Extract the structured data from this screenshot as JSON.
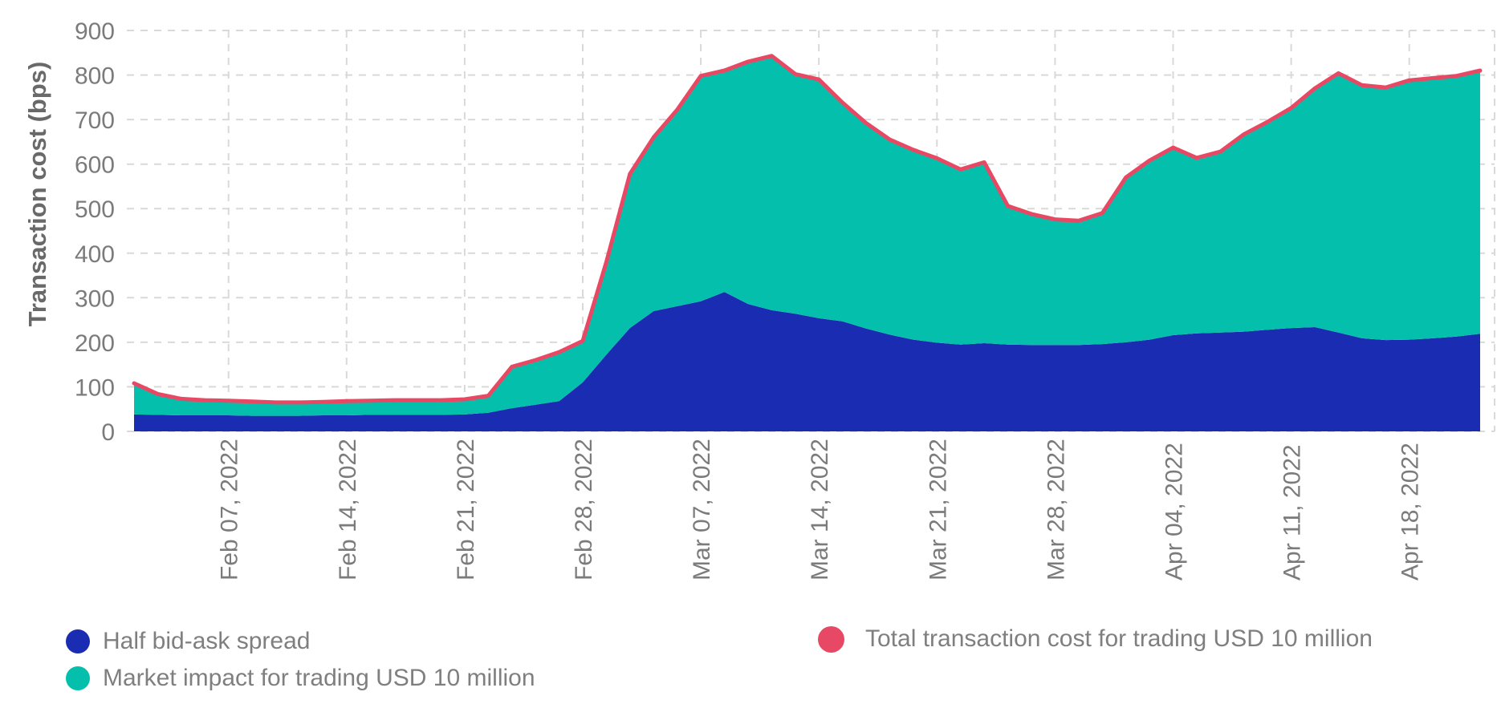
{
  "page": {
    "background_color": "#ffffff",
    "text_color": "#7b7b7b",
    "grid_color": "#d9d9d9"
  },
  "y_axis": {
    "title": "Transaction cost (bps)",
    "tick_labels": [
      "0",
      "100",
      "200",
      "300",
      "400",
      "500",
      "600",
      "700",
      "800",
      "900"
    ]
  },
  "legend": {
    "swatch_shape": "circle",
    "left_column": [
      "Half bid-ask spread",
      "Market impact for trading USD 10 million"
    ],
    "right_column": [
      "Total transaction cost for trading USD 10 million"
    ]
  },
  "chart_data": {
    "type": "area",
    "stacked": true,
    "title": "",
    "xlabel": "",
    "ylabel": "Transaction cost (bps)",
    "ylim": [
      0,
      900
    ],
    "y_ticks": [
      0,
      100,
      200,
      300,
      400,
      500,
      600,
      700,
      800,
      900
    ],
    "grid": "dashed",
    "grid_color": "#d9d9d9",
    "legend_position": "bottom",
    "x": [
      "Feb 01, 2022",
      "Feb 02, 2022",
      "Feb 03, 2022",
      "Feb 04, 2022",
      "Feb 07, 2022",
      "Feb 08, 2022",
      "Feb 09, 2022",
      "Feb 10, 2022",
      "Feb 11, 2022",
      "Feb 14, 2022",
      "Feb 15, 2022",
      "Feb 16, 2022",
      "Feb 17, 2022",
      "Feb 18, 2022",
      "Feb 21, 2022",
      "Feb 22, 2022",
      "Feb 23, 2022",
      "Feb 24, 2022",
      "Feb 25, 2022",
      "Feb 28, 2022",
      "Mar 01, 2022",
      "Mar 02, 2022",
      "Mar 03, 2022",
      "Mar 04, 2022",
      "Mar 07, 2022",
      "Mar 08, 2022",
      "Mar 09, 2022",
      "Mar 10, 2022",
      "Mar 11, 2022",
      "Mar 14, 2022",
      "Mar 15, 2022",
      "Mar 16, 2022",
      "Mar 17, 2022",
      "Mar 18, 2022",
      "Mar 21, 2022",
      "Mar 22, 2022",
      "Mar 23, 2022",
      "Mar 24, 2022",
      "Mar 25, 2022",
      "Mar 28, 2022",
      "Mar 29, 2022",
      "Mar 30, 2022",
      "Mar 31, 2022",
      "Apr 01, 2022",
      "Apr 04, 2022",
      "Apr 05, 2022",
      "Apr 06, 2022",
      "Apr 07, 2022",
      "Apr 08, 2022",
      "Apr 11, 2022",
      "Apr 12, 2022",
      "Apr 13, 2022",
      "Apr 14, 2022",
      "Apr 15, 2022",
      "Apr 18, 2022",
      "Apr 19, 2022",
      "Apr 20, 2022",
      "Apr 21, 2022"
    ],
    "x_tick_labels": [
      "Feb 07, 2022",
      "Feb 14, 2022",
      "Feb 21, 2022",
      "Feb 28, 2022",
      "Mar 07, 2022",
      "Mar 14, 2022",
      "Mar 21, 2022",
      "Mar 28, 2022",
      "Apr 04, 2022",
      "Apr 11, 2022",
      "Apr 18, 2022"
    ],
    "x_tick_indices": [
      4,
      9,
      14,
      19,
      24,
      29,
      34,
      39,
      44,
      49,
      54
    ],
    "series": [
      {
        "name": "Half bid-ask spread",
        "type": "area",
        "color": "#1a2db2",
        "values": [
          38,
          37,
          36,
          36,
          36,
          35,
          35,
          35,
          36,
          36,
          37,
          37,
          37,
          37,
          38,
          42,
          52,
          60,
          68,
          110,
          172,
          232,
          270,
          281,
          292,
          313,
          286,
          272,
          264,
          254,
          247,
          231,
          217,
          206,
          199,
          195,
          198,
          195,
          194,
          194,
          194,
          196,
          200,
          206,
          216,
          220,
          222,
          224,
          228,
          232,
          234,
          222,
          209,
          205,
          206,
          209,
          213,
          219
        ]
      },
      {
        "name": "Market impact for trading USD 10 million",
        "type": "area",
        "color": "#05bfad",
        "values": [
          70,
          47,
          37,
          34,
          33,
          32,
          30,
          30,
          30,
          32,
          32,
          33,
          33,
          33,
          34,
          38,
          93,
          100,
          110,
          93,
          208,
          346,
          390,
          441,
          506,
          497,
          544,
          571,
          538,
          536,
          491,
          461,
          438,
          426,
          414,
          393,
          406,
          311,
          294,
          282,
          279,
          294,
          370,
          402,
          421,
          394,
          406,
          443,
          467,
          494,
          536,
          582,
          568,
          567,
          582,
          584,
          585,
          591
        ]
      },
      {
        "name": "Total transaction cost for trading USD 10 million",
        "type": "line",
        "color": "#e74964",
        "values": [
          108,
          84,
          73,
          70,
          69,
          67,
          65,
          65,
          66,
          68,
          69,
          70,
          70,
          70,
          72,
          80,
          145,
          160,
          178,
          203,
          380,
          578,
          660,
          722,
          798,
          810,
          830,
          843,
          802,
          790,
          738,
          692,
          655,
          632,
          613,
          588,
          604,
          506,
          488,
          476,
          473,
          490,
          570,
          608,
          637,
          614,
          628,
          667,
          695,
          726,
          770,
          804,
          777,
          772,
          788,
          793,
          798,
          810
        ]
      }
    ]
  }
}
